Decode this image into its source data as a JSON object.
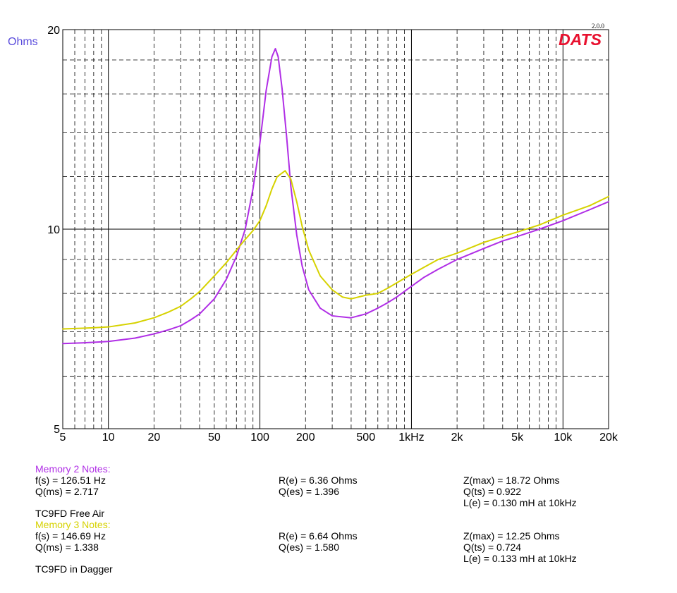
{
  "brand": {
    "logo": "DATS",
    "version": "2.0.0"
  },
  "chart_data": {
    "type": "line",
    "ylabel": "Ohms",
    "x_scale": "log",
    "y_scale": "log",
    "xlim": [
      5,
      20000
    ],
    "ylim": [
      5,
      20
    ],
    "x_ticks": [
      5,
      10,
      20,
      50,
      100,
      200,
      500,
      1000,
      2000,
      5000,
      10000,
      20000
    ],
    "x_tick_labels": [
      "5",
      "10",
      "20",
      "50",
      "100",
      "200",
      "500",
      "1kHz",
      "2k",
      "5k",
      "10k",
      "20k"
    ],
    "y_ticks": [
      5,
      10,
      20
    ],
    "y_tick_labels": [
      "5",
      "10",
      "20"
    ],
    "grid": true,
    "series": [
      {
        "name": "Memory 2",
        "color": "#b02ee6",
        "points": [
          [
            5,
            6.72
          ],
          [
            7,
            6.74
          ],
          [
            10,
            6.77
          ],
          [
            15,
            6.85
          ],
          [
            20,
            6.95
          ],
          [
            25,
            7.05
          ],
          [
            30,
            7.15
          ],
          [
            35,
            7.3
          ],
          [
            40,
            7.45
          ],
          [
            50,
            7.85
          ],
          [
            60,
            8.4
          ],
          [
            70,
            9.1
          ],
          [
            80,
            10.0
          ],
          [
            90,
            11.5
          ],
          [
            100,
            13.5
          ],
          [
            110,
            16.2
          ],
          [
            120,
            18.2
          ],
          [
            126.5,
            18.72
          ],
          [
            132,
            18.2
          ],
          [
            140,
            16.3
          ],
          [
            150,
            13.8
          ],
          [
            160,
            11.6
          ],
          [
            175,
            9.8
          ],
          [
            190,
            8.8
          ],
          [
            210,
            8.1
          ],
          [
            250,
            7.6
          ],
          [
            300,
            7.4
          ],
          [
            400,
            7.35
          ],
          [
            500,
            7.45
          ],
          [
            600,
            7.6
          ],
          [
            700,
            7.75
          ],
          [
            800,
            7.9
          ],
          [
            1000,
            8.2
          ],
          [
            1200,
            8.45
          ],
          [
            1500,
            8.7
          ],
          [
            2000,
            9.0
          ],
          [
            3000,
            9.35
          ],
          [
            4000,
            9.6
          ],
          [
            5000,
            9.75
          ],
          [
            7000,
            10.0
          ],
          [
            10000,
            10.3
          ],
          [
            15000,
            10.7
          ],
          [
            20000,
            11.0
          ]
        ]
      },
      {
        "name": "Memory 3",
        "color": "#d6d200",
        "points": [
          [
            5,
            7.07
          ],
          [
            7,
            7.09
          ],
          [
            10,
            7.12
          ],
          [
            15,
            7.22
          ],
          [
            20,
            7.35
          ],
          [
            25,
            7.5
          ],
          [
            30,
            7.65
          ],
          [
            35,
            7.85
          ],
          [
            40,
            8.05
          ],
          [
            50,
            8.5
          ],
          [
            60,
            8.9
          ],
          [
            70,
            9.3
          ],
          [
            80,
            9.65
          ],
          [
            90,
            9.95
          ],
          [
            100,
            10.3
          ],
          [
            110,
            10.85
          ],
          [
            120,
            11.5
          ],
          [
            130,
            12.0
          ],
          [
            146.7,
            12.25
          ],
          [
            160,
            11.9
          ],
          [
            175,
            11.0
          ],
          [
            190,
            10.1
          ],
          [
            210,
            9.3
          ],
          [
            250,
            8.5
          ],
          [
            300,
            8.1
          ],
          [
            350,
            7.9
          ],
          [
            400,
            7.85
          ],
          [
            500,
            7.95
          ],
          [
            600,
            8.0
          ],
          [
            700,
            8.15
          ],
          [
            800,
            8.3
          ],
          [
            1000,
            8.55
          ],
          [
            1200,
            8.75
          ],
          [
            1500,
            9.0
          ],
          [
            2000,
            9.2
          ],
          [
            3000,
            9.55
          ],
          [
            4000,
            9.75
          ],
          [
            5000,
            9.9
          ],
          [
            7000,
            10.15
          ],
          [
            10000,
            10.5
          ],
          [
            15000,
            10.85
          ],
          [
            20000,
            11.2
          ]
        ]
      }
    ]
  },
  "notes": {
    "memory2": {
      "title": "Memory 2 Notes:",
      "fs": "f(s) = 126.51 Hz",
      "qms": "Q(ms) = 2.717",
      "re": "R(e) = 6.36 Ohms",
      "qes": "Q(es) = 1.396",
      "zmax": "Z(max) = 18.72 Ohms",
      "qts": "Q(ts) = 0.922",
      "le": "L(e) = 0.130 mH at 10kHz",
      "desc": "TC9FD Free Air"
    },
    "memory3": {
      "title": "Memory 3 Notes:",
      "fs": "f(s) = 146.69 Hz",
      "qms": "Q(ms) = 1.338",
      "re": "R(e) = 6.64 Ohms",
      "qes": "Q(es) = 1.580",
      "zmax": "Z(max) = 12.25 Ohms",
      "qts": "Q(ts) = 0.724",
      "le": "L(e) = 0.133 mH at 10kHz",
      "desc": "TC9FD in Dagger"
    }
  }
}
